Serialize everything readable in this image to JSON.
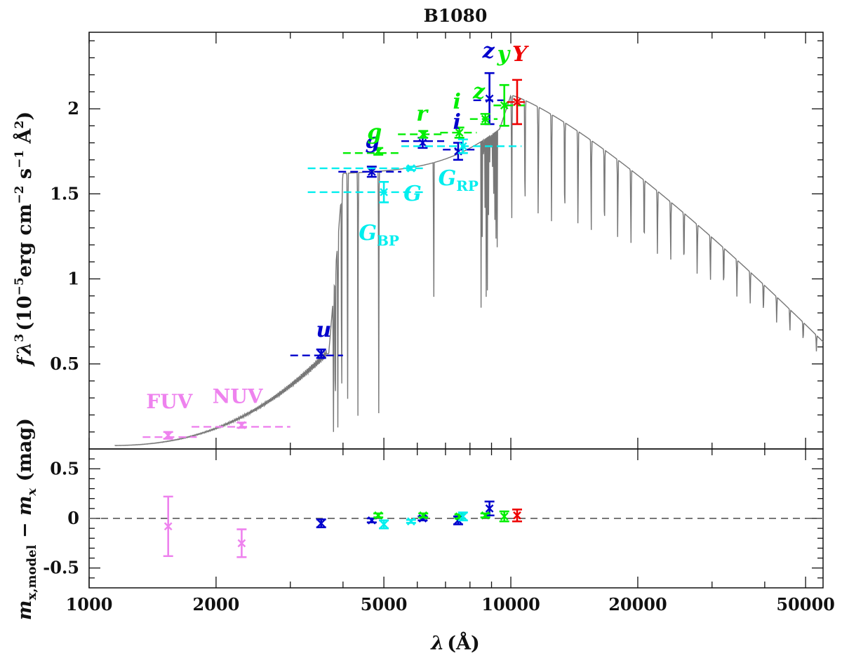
{
  "chart_data": {
    "type": "scatter",
    "title": "B1080",
    "xlabel_main": "λ",
    "xlabel_unit": "(Å)",
    "x_scale": "log",
    "xlim": [
      1000,
      55000
    ],
    "x_ticks": [
      1000,
      2000,
      5000,
      10000,
      20000,
      50000
    ],
    "top_panel": {
      "ylabel": {
        "f": "f",
        "lam": "λ",
        "exp3": "3",
        "open": "(10",
        "expm5": "−5",
        "erg": "erg cm",
        "expm2": "−2",
        "s": " s",
        "expm1": "−1",
        "A": " Å",
        "exp2": "2",
        "close": ")"
      },
      "ylim": [
        0,
        2.45
      ],
      "y_ticks": [
        0.5,
        1,
        1.5,
        2
      ],
      "model_spectrum_color": "#777777"
    },
    "bottom_panel": {
      "ylabel": {
        "m": "m",
        "sub": "x,model",
        "minus": " − ",
        "m2": "m",
        "sub2": "x",
        "unit": " (mag)"
      },
      "ylim": [
        -0.7,
        0.7
      ],
      "y_ticks": [
        0.5,
        0,
        -0.5
      ]
    },
    "colors": {
      "GALEX": "#ee82ee",
      "SDSS": "#0000cc",
      "PS1": "#00ee00",
      "Gaia": "#00eeee",
      "UKIDSS": "#ee0000"
    },
    "photometry": [
      {
        "name": "FUV",
        "survey": "GALEX",
        "lam": 1540,
        "lam_lo": 1340,
        "lam_hi": 1800,
        "model": 0.07,
        "obs": 0.08,
        "err": 0.02,
        "resid": -0.08,
        "resid_err": 0.3
      },
      {
        "name": "NUV",
        "survey": "GALEX",
        "lam": 2300,
        "lam_lo": 1750,
        "lam_hi": 3000,
        "model": 0.13,
        "obs": 0.14,
        "err": 0.015,
        "resid": -0.25,
        "resid_err": 0.14
      },
      {
        "name": "u",
        "survey": "SDSS",
        "lam": 3550,
        "lam_lo": 3000,
        "lam_hi": 4000,
        "model": 0.55,
        "obs": 0.56,
        "err": 0.025,
        "resid": -0.05,
        "resid_err": 0.04
      },
      {
        "name": "g",
        "survey": "SDSS",
        "lam": 4680,
        "lam_lo": 3900,
        "lam_hi": 5500,
        "model": 1.63,
        "obs": 1.63,
        "err": 0.03,
        "resid": -0.02,
        "resid_err": 0.02
      },
      {
        "name": "r",
        "survey": "SDSS",
        "lam": 6180,
        "lam_lo": 5500,
        "lam_hi": 6950,
        "model": 1.81,
        "obs": 1.8,
        "err": 0.03,
        "resid": 0.0,
        "resid_err": 0.02
      },
      {
        "name": "i",
        "survey": "SDSS",
        "lam": 7500,
        "lam_lo": 6900,
        "lam_hi": 8300,
        "model": 1.76,
        "obs": 1.75,
        "err": 0.05,
        "resid": -0.02,
        "resid_err": 0.04
      },
      {
        "name": "z",
        "survey": "SDSS",
        "lam": 8900,
        "lam_lo": 8150,
        "lam_hi": 9900,
        "model": 2.05,
        "obs": 2.06,
        "err": 0.15,
        "resid": 0.1,
        "resid_err": 0.07
      },
      {
        "name": "g",
        "survey": "PS1",
        "lam": 4850,
        "lam_lo": 4000,
        "lam_hi": 5500,
        "model": 1.74,
        "obs": 1.75,
        "err": 0.02,
        "resid": 0.03,
        "resid_err": 0.02
      },
      {
        "name": "r",
        "survey": "PS1",
        "lam": 6200,
        "lam_lo": 5400,
        "lam_hi": 7000,
        "model": 1.85,
        "obs": 1.85,
        "err": 0.02,
        "resid": 0.03,
        "resid_err": 0.02
      },
      {
        "name": "i",
        "survey": "PS1",
        "lam": 7550,
        "lam_lo": 6800,
        "lam_hi": 8300,
        "model": 1.86,
        "obs": 1.86,
        "err": 0.03,
        "resid": 0.02,
        "resid_err": 0.02
      },
      {
        "name": "z",
        "survey": "PS1",
        "lam": 8700,
        "lam_lo": 8000,
        "lam_hi": 9300,
        "model": 1.94,
        "obs": 1.94,
        "err": 0.03,
        "resid": 0.03,
        "resid_err": 0.02
      },
      {
        "name": "y",
        "survey": "PS1",
        "lam": 9650,
        "lam_lo": 9100,
        "lam_hi": 10800,
        "model": 2.02,
        "obs": 2.02,
        "err": 0.12,
        "resid": 0.02,
        "resid_err": 0.05
      },
      {
        "name": "G",
        "survey": "Gaia",
        "lam": 5000,
        "lam_lo": 3300,
        "lam_hi": 6300,
        "model": 1.51,
        "obs": 1.51,
        "err": 0.06,
        "resid": -0.06,
        "resid_err": 0.04
      },
      {
        "name": "GBP",
        "survey": "Gaia",
        "lam": 5800,
        "lam_lo": 3300,
        "lam_hi": 6300,
        "model": 1.65,
        "obs": 1.65,
        "err": 0.01,
        "resid": -0.03,
        "resid_err": 0.015
      },
      {
        "name": "GRP",
        "survey": "Gaia",
        "lam": 7700,
        "lam_lo": 5500,
        "lam_hi": 10600,
        "model": 1.78,
        "obs": 1.78,
        "err": 0.04,
        "resid": 0.02,
        "resid_err": 0.04
      },
      {
        "name": "Y",
        "survey": "UKIDSS",
        "lam": 10350,
        "lam_lo": 9800,
        "lam_hi": 10800,
        "model": 2.04,
        "obs": 2.04,
        "err": 0.13,
        "resid": 0.03,
        "resid_err": 0.06
      }
    ],
    "labels": [
      {
        "key": "FUV",
        "text": "FUV",
        "survey": "GALEX",
        "lam": 1550,
        "y": 0.24
      },
      {
        "key": "NUV",
        "text": "NUV",
        "survey": "GALEX",
        "lam": 2250,
        "y": 0.27
      },
      {
        "key": "u",
        "text": "u",
        "survey": "SDSS",
        "lam": 3600,
        "y": 0.66,
        "italic": true
      },
      {
        "key": "g_sdss",
        "text": "g",
        "survey": "SDSS",
        "lam": 4700,
        "y": 1.77,
        "italic": true
      },
      {
        "key": "i_sdss",
        "text": "i",
        "survey": "SDSS",
        "lam": 7450,
        "y": 1.88,
        "italic": true
      },
      {
        "key": "z_sdss",
        "text": "z",
        "survey": "SDSS",
        "lam": 8850,
        "y": 2.3,
        "italic": true
      },
      {
        "key": "g_ps1",
        "text": "g",
        "survey": "PS1",
        "lam": 4750,
        "y": 1.82,
        "italic": true
      },
      {
        "key": "r_ps1",
        "text": "r",
        "survey": "PS1",
        "lam": 6150,
        "y": 1.93,
        "italic": true
      },
      {
        "key": "i_ps1",
        "text": "i",
        "survey": "PS1",
        "lam": 7450,
        "y": 2.0,
        "italic": true
      },
      {
        "key": "z_ps1",
        "text": "z",
        "survey": "PS1",
        "lam": 8400,
        "y": 2.06,
        "italic": true
      },
      {
        "key": "y_ps1",
        "text": "y",
        "survey": "PS1",
        "lam": 9600,
        "y": 2.28,
        "italic": true
      },
      {
        "key": "Y_uk",
        "text": "Y",
        "survey": "UKIDSS",
        "lam": 10500,
        "y": 2.28,
        "italic": true
      },
      {
        "key": "G_gaia",
        "text": "G",
        "survey": "Gaia",
        "lam": 5850,
        "y": 1.46,
        "italic": true
      },
      {
        "key": "GBP_gaia",
        "text": "G",
        "sub": "BP",
        "survey": "Gaia",
        "lam": 4600,
        "y": 1.23,
        "italic": true
      },
      {
        "key": "GRP_gaia",
        "text": "G",
        "sub": "RP",
        "survey": "Gaia",
        "lam": 7100,
        "y": 1.55,
        "italic": true
      }
    ]
  }
}
